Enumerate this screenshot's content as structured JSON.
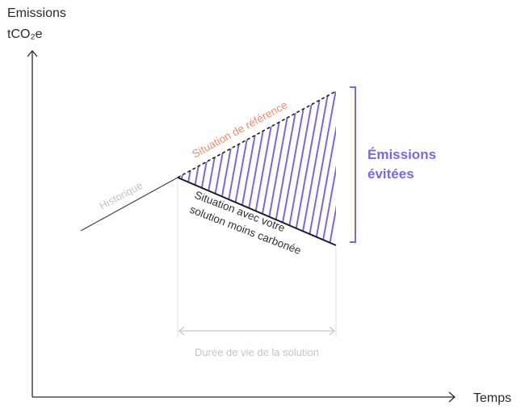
{
  "axes": {
    "y_label_line1": "Emissions",
    "y_label_line2": "tCO₂e",
    "x_label": "Temps"
  },
  "labels": {
    "historique": "Historique",
    "reference": "Situation de référence",
    "solution_line1": "Situation avec votre",
    "solution_line2": "solution moins carbonée",
    "avoided_line1": "Émissions",
    "avoided_line2": "évitées",
    "lifetime": "Durée de vie de la solution"
  },
  "colors": {
    "axis": "#2a2a2a",
    "historique": "#c4c4c4",
    "reference": "#f08a6c",
    "solution": "#1f1f1f",
    "avoided": "#7b68e0",
    "lifetime": "#c8c8c8"
  }
}
